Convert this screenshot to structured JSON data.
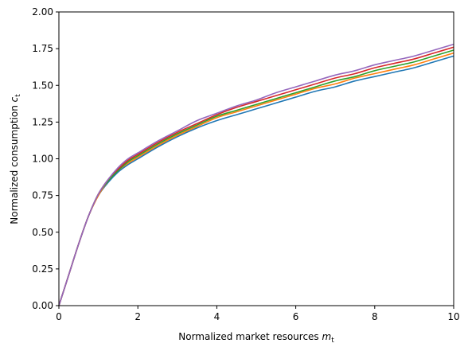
{
  "chart_data": {
    "type": "line",
    "title": "",
    "xlabel": "Normalized market resources m_t",
    "ylabel": "Normalized consumption c_t",
    "xlabel_main": "Normalized market resources ",
    "xlabel_var": "m",
    "xlabel_sub": "t",
    "ylabel_main": "Normalized consumption ",
    "ylabel_var": "c",
    "ylabel_sub": "t",
    "xlim": [
      0,
      10
    ],
    "ylim": [
      0,
      2
    ],
    "xticks": [
      0,
      2,
      4,
      6,
      8,
      10
    ],
    "xtick_labels": [
      "0",
      "2",
      "4",
      "6",
      "8",
      "10"
    ],
    "yticks": [
      0,
      0.25,
      0.5,
      0.75,
      1.0,
      1.25,
      1.5,
      1.75,
      2.0
    ],
    "ytick_labels": [
      "0.00",
      "0.25",
      "0.50",
      "0.75",
      "1.00",
      "1.25",
      "1.50",
      "1.75",
      "2.00"
    ],
    "grid": false,
    "legend": "none",
    "x": [
      0,
      0.25,
      0.5,
      0.75,
      1.0,
      1.25,
      1.5,
      1.75,
      2.0,
      2.5,
      3.0,
      3.5,
      4.0,
      4.5,
      5.0,
      5.5,
      6.0,
      6.5,
      7.0,
      7.5,
      8.0,
      8.5,
      9.0,
      9.5,
      10.0
    ],
    "series": [
      {
        "color": "#1f77b4",
        "values": [
          0.0,
          0.21,
          0.42,
          0.61,
          0.75,
          0.84,
          0.91,
          0.96,
          1.0,
          1.08,
          1.15,
          1.21,
          1.26,
          1.3,
          1.34,
          1.38,
          1.42,
          1.46,
          1.49,
          1.53,
          1.56,
          1.59,
          1.62,
          1.66,
          1.7
        ]
      },
      {
        "color": "#ff7f0e",
        "values": [
          0.0,
          0.21,
          0.42,
          0.61,
          0.75,
          0.85,
          0.92,
          0.97,
          1.01,
          1.09,
          1.16,
          1.22,
          1.28,
          1.32,
          1.36,
          1.4,
          1.44,
          1.48,
          1.51,
          1.55,
          1.58,
          1.61,
          1.64,
          1.68,
          1.72
        ]
      },
      {
        "color": "#2ca02c",
        "values": [
          0.0,
          0.21,
          0.42,
          0.61,
          0.76,
          0.85,
          0.92,
          0.98,
          1.02,
          1.1,
          1.17,
          1.23,
          1.29,
          1.33,
          1.37,
          1.41,
          1.45,
          1.49,
          1.53,
          1.56,
          1.6,
          1.63,
          1.66,
          1.7,
          1.74
        ]
      },
      {
        "color": "#d62728",
        "values": [
          0.0,
          0.21,
          0.42,
          0.61,
          0.76,
          0.86,
          0.93,
          0.99,
          1.03,
          1.11,
          1.18,
          1.24,
          1.3,
          1.35,
          1.39,
          1.43,
          1.47,
          1.51,
          1.55,
          1.58,
          1.62,
          1.65,
          1.68,
          1.72,
          1.76
        ]
      },
      {
        "color": "#9467bd",
        "values": [
          0.0,
          0.21,
          0.42,
          0.61,
          0.76,
          0.86,
          0.94,
          1.0,
          1.04,
          1.12,
          1.19,
          1.26,
          1.31,
          1.36,
          1.4,
          1.45,
          1.49,
          1.53,
          1.57,
          1.6,
          1.64,
          1.67,
          1.7,
          1.74,
          1.78
        ]
      }
    ]
  }
}
